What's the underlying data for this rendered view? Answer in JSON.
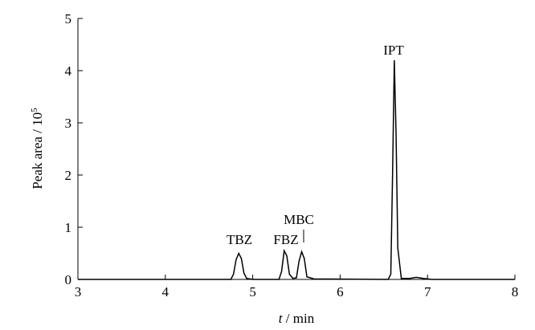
{
  "chart_data": {
    "type": "line",
    "xlabel_italic": "t",
    "xlabel": " / min",
    "ylabel": "Peak area / 10",
    "ylabel_exponent": "5",
    "x": [
      3,
      4.75,
      4.78,
      4.81,
      4.84,
      4.87,
      4.9,
      4.93,
      5.0,
      5.3,
      5.33,
      5.36,
      5.39,
      5.42,
      5.46,
      5.5,
      5.53,
      5.56,
      5.59,
      5.62,
      5.7,
      6.55,
      6.58,
      6.6,
      6.62,
      6.64,
      6.66,
      6.7,
      6.8,
      6.87,
      6.95,
      7.05,
      8
    ],
    "values": [
      0,
      0,
      0.1,
      0.38,
      0.5,
      0.4,
      0.12,
      0.02,
      0,
      0,
      0.15,
      0.55,
      0.45,
      0.1,
      0.02,
      0.03,
      0.35,
      0.53,
      0.4,
      0.05,
      0.01,
      0,
      0.1,
      2.0,
      4.2,
      2.8,
      0.6,
      0.02,
      0.02,
      0.04,
      0.02,
      0,
      0
    ],
    "color": "#000000",
    "annotations": [
      "TBZ",
      "FBZ",
      "MBC",
      "IPT"
    ],
    "xlim": [
      3,
      8
    ],
    "xticks": [
      3,
      4,
      5,
      6,
      7,
      8
    ],
    "ylim": [
      0,
      5
    ],
    "yticks": [
      0,
      1,
      2,
      3,
      4,
      5
    ]
  }
}
